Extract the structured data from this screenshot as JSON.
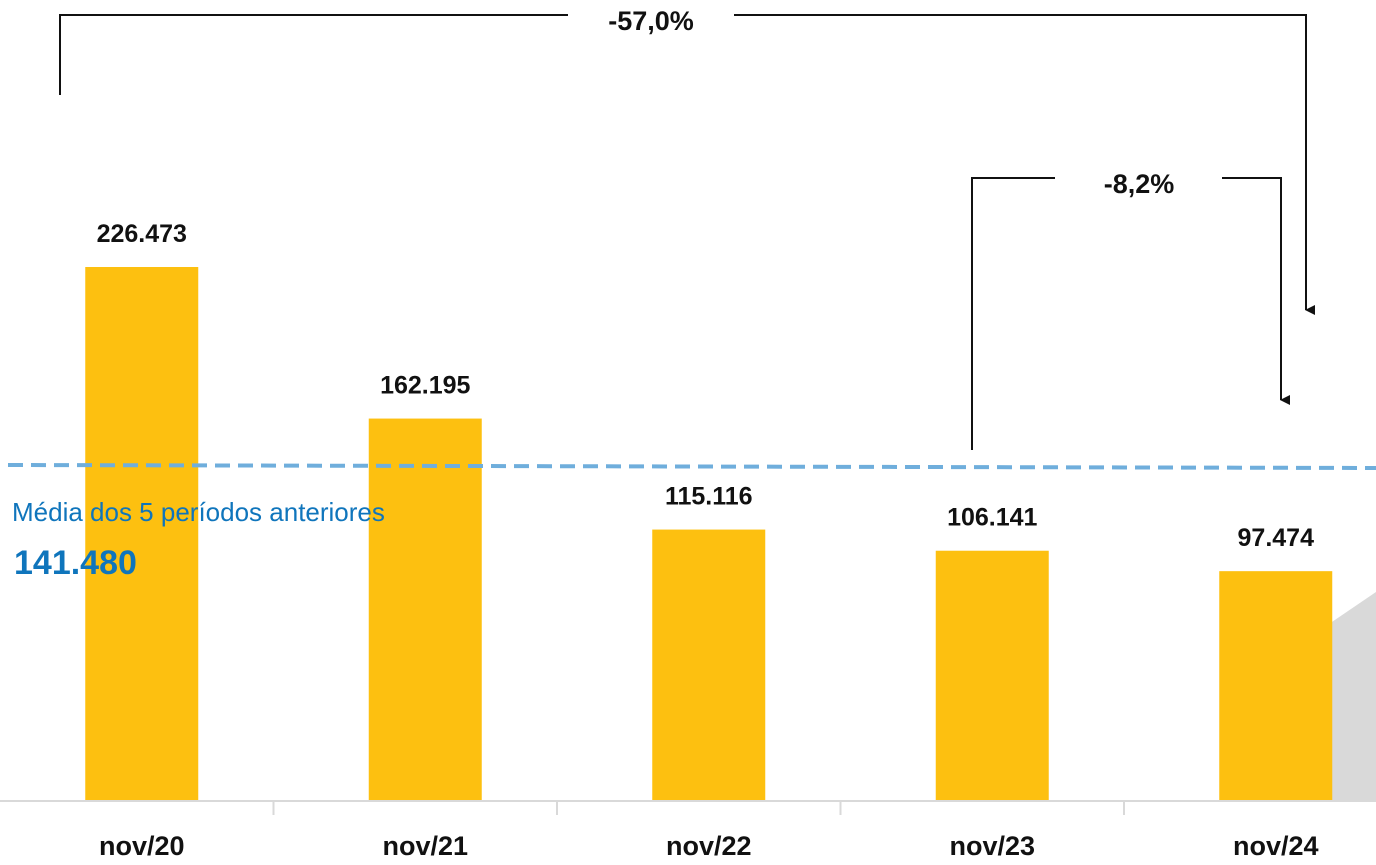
{
  "chart_data": {
    "type": "bar",
    "categories": [
      "nov/20",
      "nov/21",
      "nov/22",
      "nov/23",
      "nov/24"
    ],
    "values": [
      226473,
      162195,
      115116,
      106141,
      97474
    ],
    "value_labels": [
      "226.473",
      "162.195",
      "115.116",
      "106.141",
      "97.474"
    ],
    "ylim": [
      0,
      300000
    ],
    "grid": false,
    "bar_color": "#FDC010",
    "average": {
      "label": "Média dos 5 períodos anteriores",
      "value": 141480,
      "value_label": "141.480",
      "color": "#0F75BC",
      "line_color": "#6FAEDC"
    },
    "changes": [
      {
        "label": "-57,0%",
        "from": "nov/20",
        "to": "nov/24"
      },
      {
        "label": "-8,2%",
        "from": "nov/23",
        "to": "nov/24"
      }
    ]
  }
}
